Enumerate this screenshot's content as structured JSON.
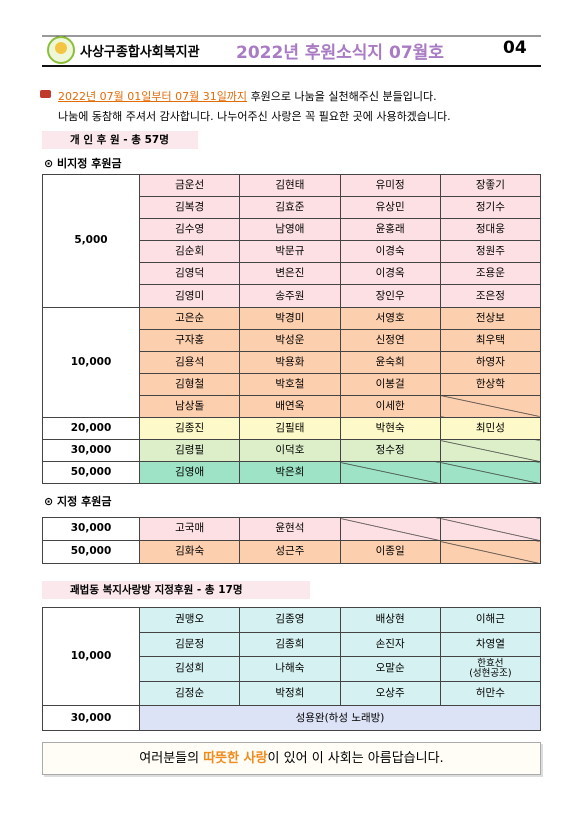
{
  "header": {
    "org": "사상구종합사회복지관",
    "title": "2022년 후원소식지 07월호",
    "page": "04"
  },
  "intro": {
    "period": "2022년 07월 01일부터 07월 31일까지",
    "line1_rest": "후원으로 나눔을 실천해주신 분들입니다.",
    "line2": "나눔에 동참해 주셔서 감사합니다. 나누어주신 사랑은 꼭 필요한 곳에 사용하겠습니다."
  },
  "sections": [
    {
      "heading": "개 인 후 원 - 총 57명",
      "subsections": [
        {
          "label": "⊙ 비지정 후원금",
          "groups": [
            {
              "amount": "5,000",
              "color": "#fde0e4",
              "rows": [
                [
                  "금운선",
                  "김현태",
                  "유미정",
                  "장좋기"
                ],
                [
                  "김복경",
                  "김효준",
                  "유상민",
                  "정기수"
                ],
                [
                  "김수영",
                  "남영애",
                  "윤홍래",
                  "정대웅"
                ],
                [
                  "김순회",
                  "박문규",
                  "이경숙",
                  "정원주"
                ],
                [
                  "김영덕",
                  "변은진",
                  "이경옥",
                  "조용운"
                ],
                [
                  "김영미",
                  "송주원",
                  "장인우",
                  "조은정"
                ]
              ]
            },
            {
              "amount": "10,000",
              "color": "#fccfae",
              "rows": [
                [
                  "고은순",
                  "박경미",
                  "서영호",
                  "전상보"
                ],
                [
                  "구자홍",
                  "박성운",
                  "신정연",
                  "최우택"
                ],
                [
                  "김용석",
                  "박용화",
                  "윤숙희",
                  "하영자"
                ],
                [
                  "김형철",
                  "박호철",
                  "이봉걸",
                  "한상학"
                ],
                [
                  "남상돌",
                  "배연옥",
                  "이세한",
                  null
                ]
              ]
            },
            {
              "amount": "20,000",
              "color": "#fef9c8",
              "rows": [
                [
                  "김종진",
                  "김필태",
                  "박현숙",
                  "최민성"
                ]
              ]
            },
            {
              "amount": "30,000",
              "color": "#dcefc9",
              "rows": [
                [
                  "김령필",
                  "이덕호",
                  "정수정",
                  null
                ]
              ]
            },
            {
              "amount": "50,000",
              "color": "#9ee3c5",
              "rows": [
                [
                  "김영애",
                  "박은희",
                  null,
                  null
                ]
              ]
            }
          ]
        },
        {
          "label": "⊙ 지정 후원금",
          "groups": [
            {
              "amount": "30,000",
              "color": "#fde0e4",
              "rows": [
                [
                  "고국매",
                  "윤현석",
                  null,
                  null
                ]
              ]
            },
            {
              "amount": "50,000",
              "color": "#fccfae",
              "rows": [
                [
                  "김화숙",
                  "성근주",
                  "이종일",
                  null
                ]
              ]
            }
          ]
        }
      ]
    },
    {
      "heading": "괘법동 복지사랑방 지정후원 - 총 17명",
      "subsections": [
        {
          "groups": [
            {
              "amount": "10,000",
              "color": "#d5f1f1",
              "rows": [
                [
                  "권맹오",
                  "김종영",
                  "배상현",
                  "이해근"
                ],
                [
                  "김문정",
                  "김종희",
                  "손진자",
                  "차영열"
                ],
                [
                  "김성희",
                  "나해숙",
                  "오말순",
                  "한효선\n(성현공조)"
                ],
                [
                  "김정순",
                  "박정희",
                  "오상주",
                  "허만수"
                ]
              ]
            },
            {
              "amount": "30,000",
              "color": "#dde3f6",
              "rows": [
                [
                  "성용완(하성 노래방)"
                ]
              ]
            }
          ]
        }
      ]
    }
  ],
  "footer": {
    "before": "여러분들의 ",
    "highlight": "따뜻한 사랑",
    "after": "이 있어 이 사회는 아름답습니다."
  }
}
